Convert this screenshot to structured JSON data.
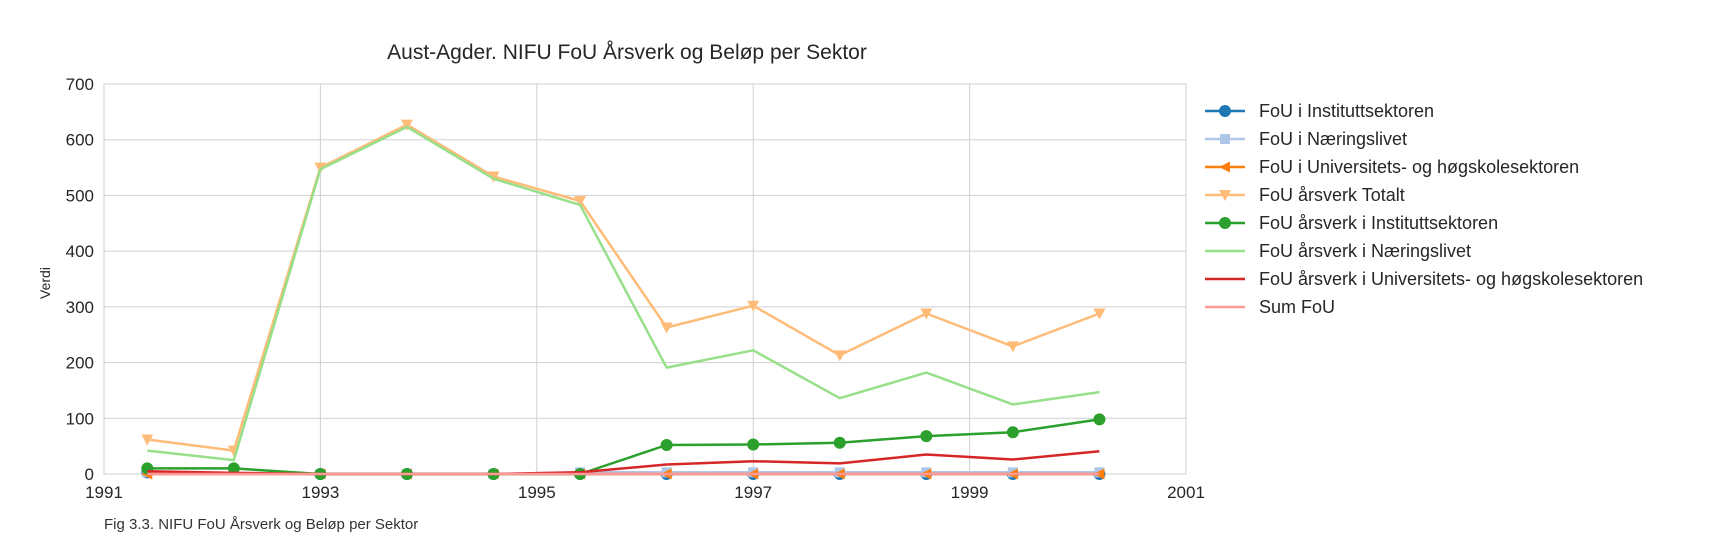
{
  "caption": "Fig 3.3. NIFU FoU Årsverk og Beløp per Sektor",
  "chart_data": {
    "type": "line",
    "title": "Aust-Agder. NIFU FoU Årsverk og Beløp per Sektor",
    "xlabel": "",
    "ylabel": "Verdi",
    "xlim": [
      1991,
      2001
    ],
    "ylim": [
      0,
      700
    ],
    "xticks": [
      1991,
      1993,
      1995,
      1997,
      1999,
      2001
    ],
    "yticks": [
      0,
      100,
      200,
      300,
      400,
      500,
      600,
      700
    ],
    "grid": true,
    "legend_position": "right",
    "x": [
      1991.4,
      1992.2,
      1993.0,
      1993.8,
      1994.6,
      1995.4,
      1996.2,
      1997.0,
      1997.8,
      1998.6,
      1999.4,
      2000.2
    ],
    "series": [
      {
        "name": "FoU i Instituttsektoren",
        "color": "#1f77b4",
        "marker": "circle",
        "x": [
          1991.4,
          1993.0,
          1993.8,
          1994.6,
          1995.4,
          1996.2,
          1997.0,
          1997.8,
          1998.6,
          1999.4,
          2000.2
        ],
        "values": [
          3,
          0,
          0,
          0,
          0,
          0,
          0,
          0,
          0,
          0,
          0
        ]
      },
      {
        "name": "FoU i Næringslivet",
        "color": "#aec7e8",
        "marker": "square",
        "x": [
          1991.4,
          1993.0,
          1993.8,
          1994.6,
          1995.4,
          1996.2,
          1997.0,
          1997.8,
          1998.6,
          1999.4,
          2000.2
        ],
        "values": [
          3,
          0,
          0,
          0,
          3,
          3,
          3,
          3,
          3,
          3,
          3
        ]
      },
      {
        "name": "FoU i Universitets- og høgskolesektoren",
        "color": "#ff7f0e",
        "marker": "triangle-left",
        "x": [
          1991.4,
          1993.0,
          1993.8,
          1994.6,
          1995.4,
          1996.2,
          1997.0,
          1997.8,
          1998.6,
          1999.4,
          2000.2
        ],
        "values": [
          0,
          0,
          0,
          0,
          0,
          0,
          0,
          0,
          0,
          0,
          0
        ]
      },
      {
        "name": "FoU årsverk Totalt",
        "color": "#ffbb78",
        "marker": "triangle-down",
        "x": [
          1991.4,
          1992.2,
          1993.0,
          1993.8,
          1994.6,
          1995.4,
          1996.2,
          1997.0,
          1997.8,
          1998.6,
          1999.4,
          2000.2
        ],
        "values": [
          62,
          42,
          550,
          627,
          534,
          490,
          263,
          302,
          213,
          288,
          229,
          288
        ]
      },
      {
        "name": "FoU årsverk i Instituttsektoren",
        "color": "#2ca02c",
        "marker": "circle",
        "x": [
          1991.4,
          1992.2,
          1993.0,
          1993.8,
          1994.6,
          1995.4,
          1996.2,
          1997.0,
          1997.8,
          1998.6,
          1999.4,
          2000.2
        ],
        "values": [
          10,
          10,
          0,
          0,
          0,
          0,
          52,
          53,
          56,
          68,
          75,
          98
        ]
      },
      {
        "name": "FoU årsverk i Næringslivet",
        "color": "#98df8a",
        "marker": "none",
        "x": [
          1991.4,
          1992.2,
          1993.0,
          1993.8,
          1994.6,
          1995.4,
          1996.2,
          1997.0,
          1997.8,
          1998.6,
          1999.4,
          2000.2
        ],
        "values": [
          42,
          25,
          547,
          623,
          530,
          483,
          191,
          222,
          136,
          182,
          125,
          147
        ]
      },
      {
        "name": "FoU årsverk i Universitets- og høgskolesektoren",
        "color": "#d62728",
        "marker": "none",
        "x": [
          1991.4,
          1992.2,
          1993.0,
          1993.8,
          1994.6,
          1995.4,
          1996.2,
          1997.0,
          1997.8,
          1998.6,
          1999.4,
          2000.2
        ],
        "values": [
          5,
          2,
          0,
          0,
          0,
          3,
          17,
          23,
          19,
          35,
          26,
          41
        ]
      },
      {
        "name": "Sum FoU",
        "color": "#ff9896",
        "marker": "none",
        "x": [
          1991.4,
          1992.2,
          1993.0,
          1993.8,
          1994.6,
          1995.4,
          1996.2,
          1997.0,
          1997.8,
          1998.6,
          1999.4,
          2000.2
        ],
        "values": [
          0,
          0,
          0,
          0,
          0,
          0,
          0,
          0,
          0,
          0,
          0,
          0
        ]
      }
    ]
  }
}
